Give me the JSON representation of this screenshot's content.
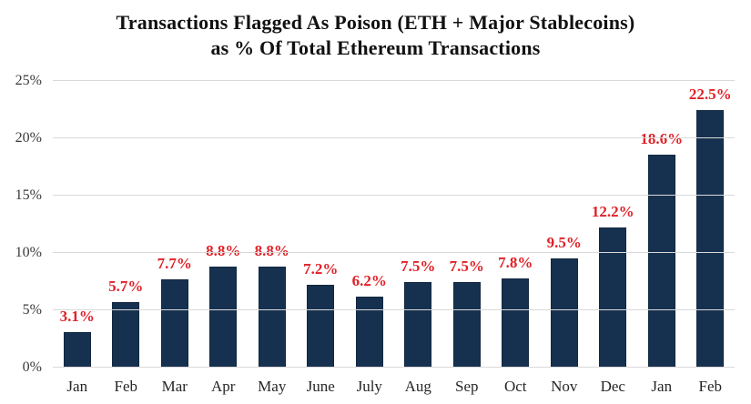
{
  "header": {
    "title_line1": "Transactions Flagged As Poison (ETH + Major Stablecoins)",
    "title_line2": "as % Of Total Ethereum Transactions"
  },
  "chart_data": {
    "type": "bar",
    "title": "Transactions Flagged As Poison (ETH + Major Stablecoins) as % Of Total Ethereum Transactions",
    "categories": [
      "Jan",
      "Feb",
      "Mar",
      "Apr",
      "May",
      "June",
      "July",
      "Aug",
      "Sep",
      "Oct",
      "Nov",
      "Dec",
      "Jan",
      "Feb"
    ],
    "values": [
      3.1,
      5.7,
      7.7,
      8.8,
      8.8,
      7.2,
      6.2,
      7.5,
      7.5,
      7.8,
      9.5,
      12.2,
      18.6,
      22.5
    ],
    "data_labels": [
      "3.1%",
      "5.7%",
      "7.7%",
      "8.8%",
      "8.8%",
      "7.2%",
      "6.2%",
      "7.5%",
      "7.5%",
      "7.8%",
      "9.5%",
      "12.2%",
      "18.6%",
      "22.5%"
    ],
    "xlabel": "",
    "ylabel": "",
    "ylim": [
      0,
      25
    ],
    "y_tick_values": [
      0,
      5,
      10,
      15,
      20,
      25
    ],
    "y_tick_labels": [
      "0%",
      "5%",
      "10%",
      "15%",
      "20%",
      "25%"
    ],
    "grid": true,
    "legend": false,
    "colors": {
      "bar": "#16314f",
      "data_label": "#e02128",
      "grid_line": "#d9d9d9",
      "axis_text": "#3a3a3a",
      "title_text": "#111111",
      "background": "#ffffff"
    }
  }
}
